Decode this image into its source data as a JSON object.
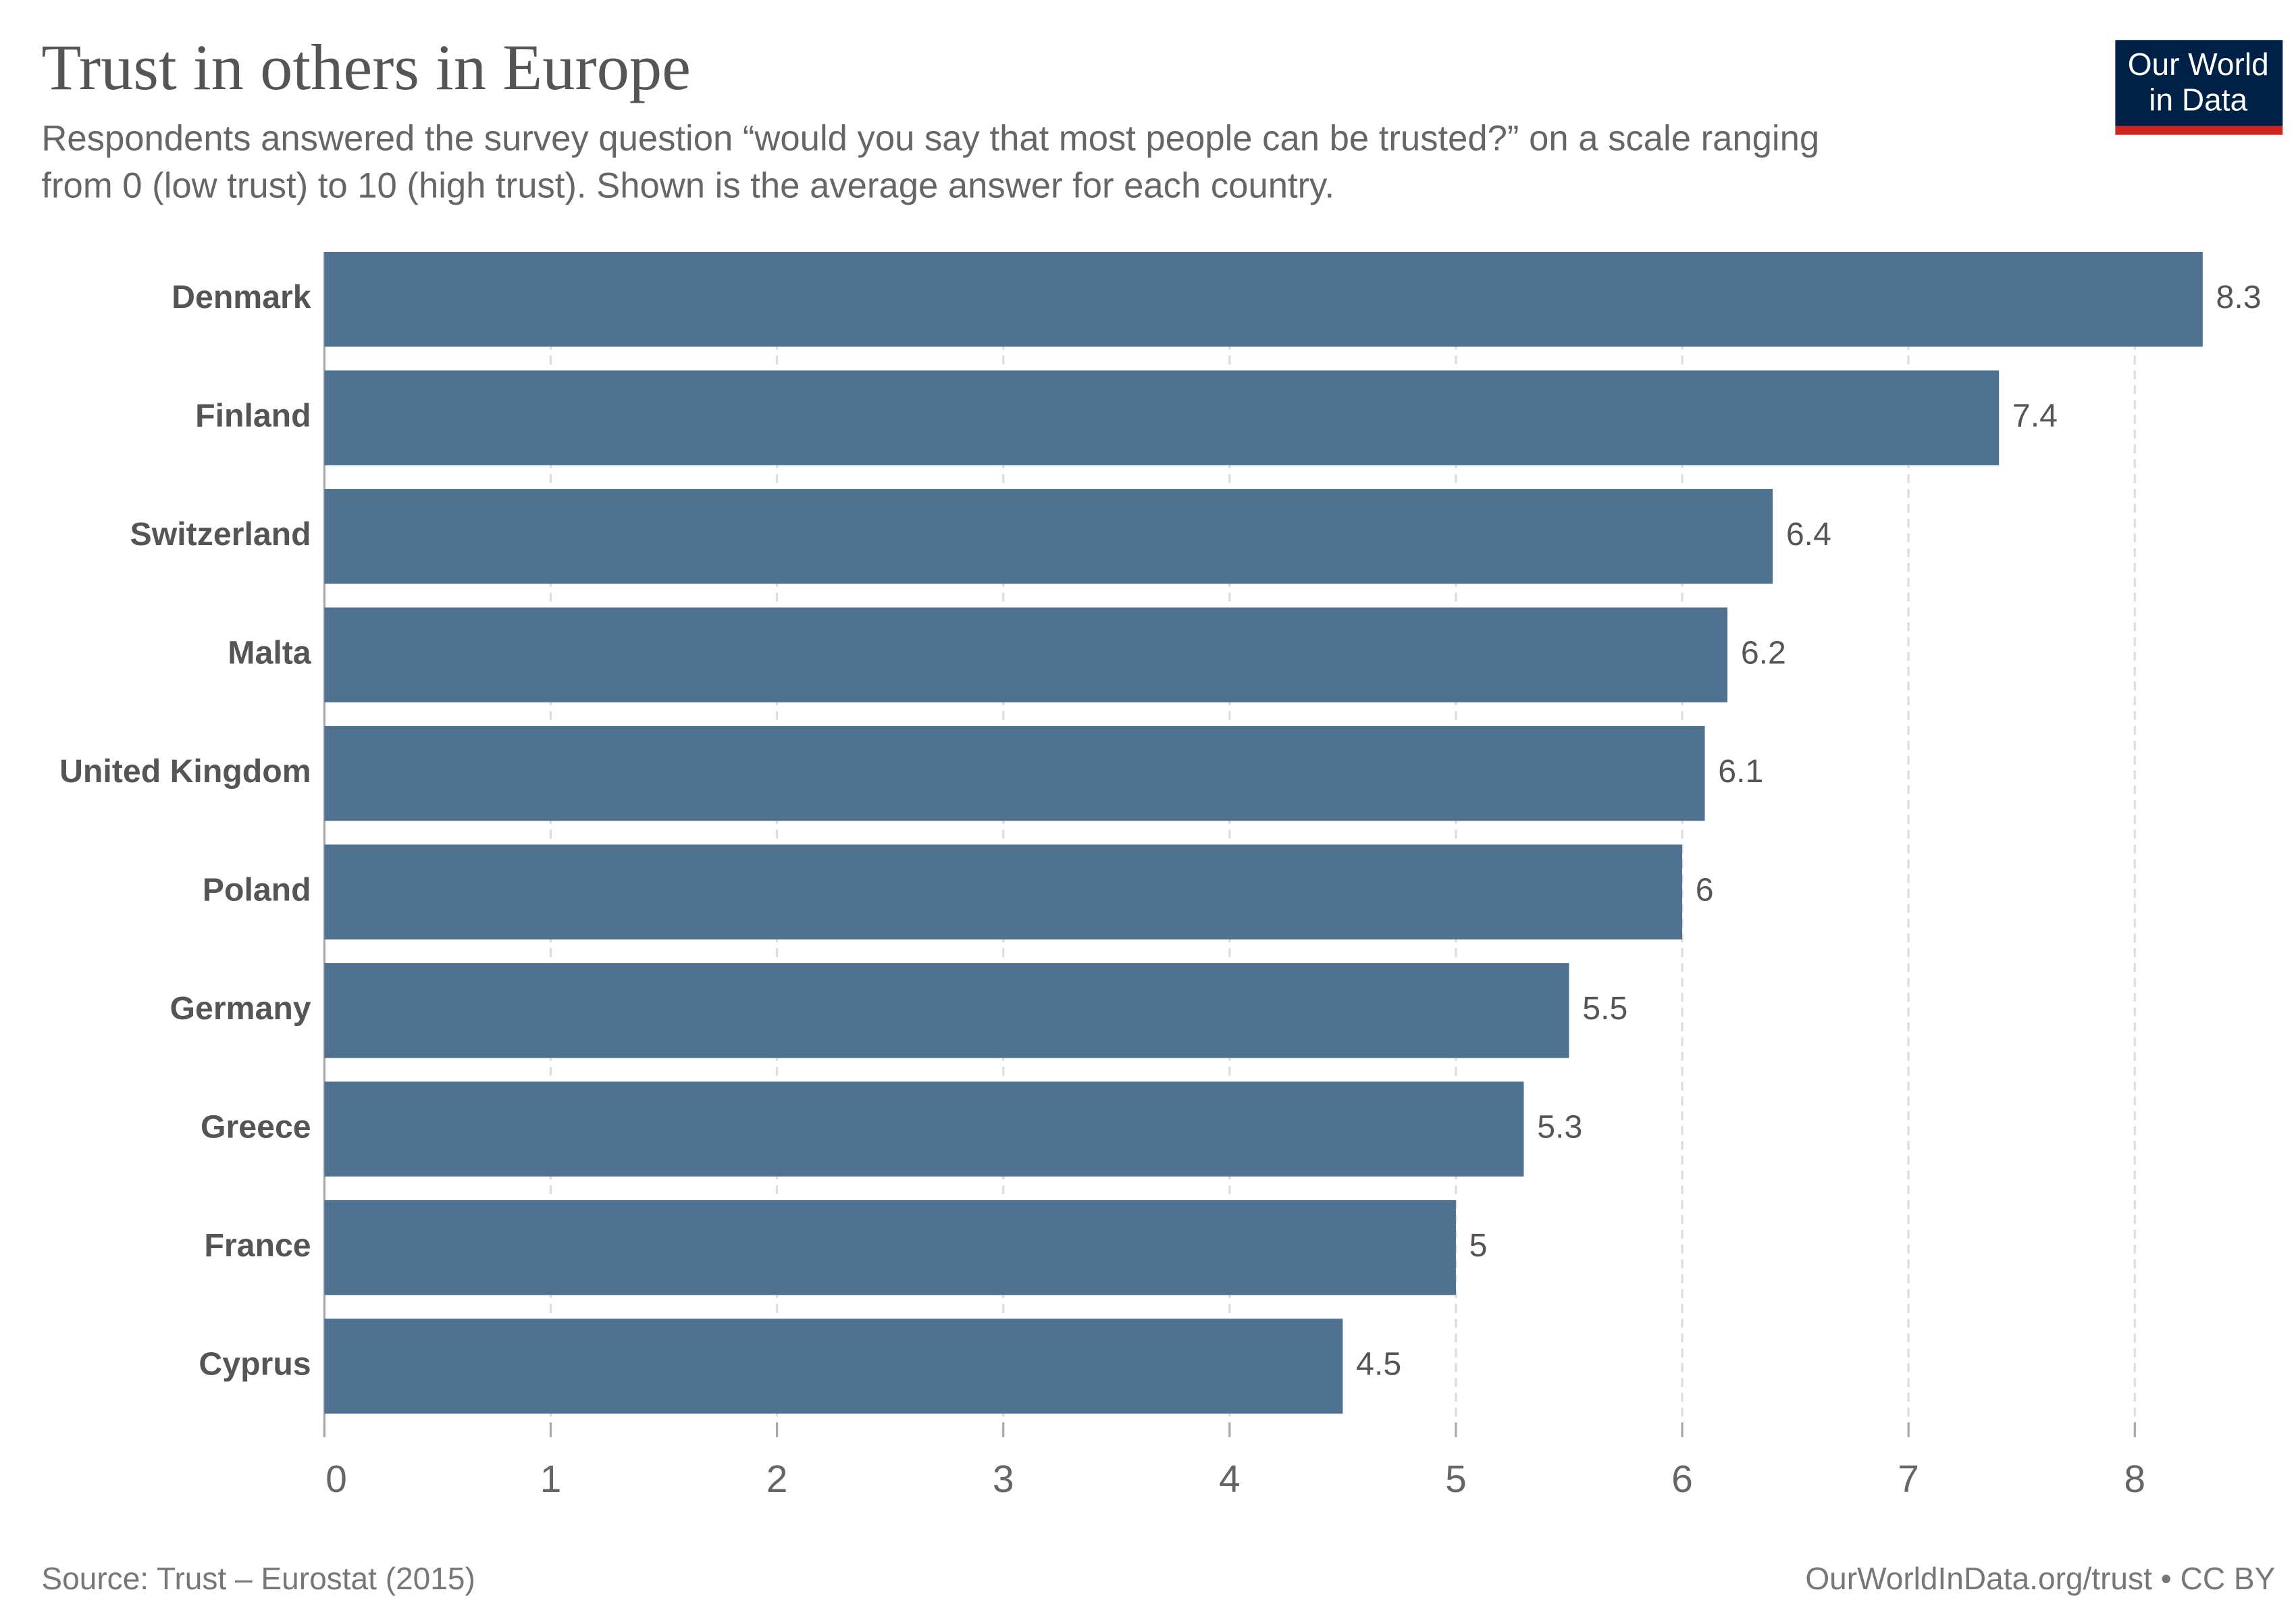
{
  "chart_data": {
    "type": "hbar",
    "title": "Trust in others in Europe",
    "subtitle": [
      "Respondents answered the survey question “would you say that most people can be trusted?” on a scale ranging",
      "from 0 (low trust) to 10 (high trust). Shown is the average answer for each country."
    ],
    "categories": [
      "Denmark",
      "Finland",
      "Switzerland",
      "Malta",
      "United Kingdom",
      "Poland",
      "Germany",
      "Greece",
      "France",
      "Cyprus"
    ],
    "values": [
      8.3,
      7.4,
      6.4,
      6.2,
      6.1,
      6,
      5.5,
      5.3,
      5,
      4.5
    ],
    "color": "#4f7290",
    "xlim": [
      0,
      8.3
    ],
    "xticks": [
      0,
      1,
      2,
      3,
      4,
      5,
      6,
      7,
      8
    ],
    "grid": true,
    "source": "Source: Trust – Eurostat (2015)",
    "credit": "OurWorldInData.org/trust • CC BY",
    "logo": [
      "Our World",
      "in Data"
    ]
  }
}
